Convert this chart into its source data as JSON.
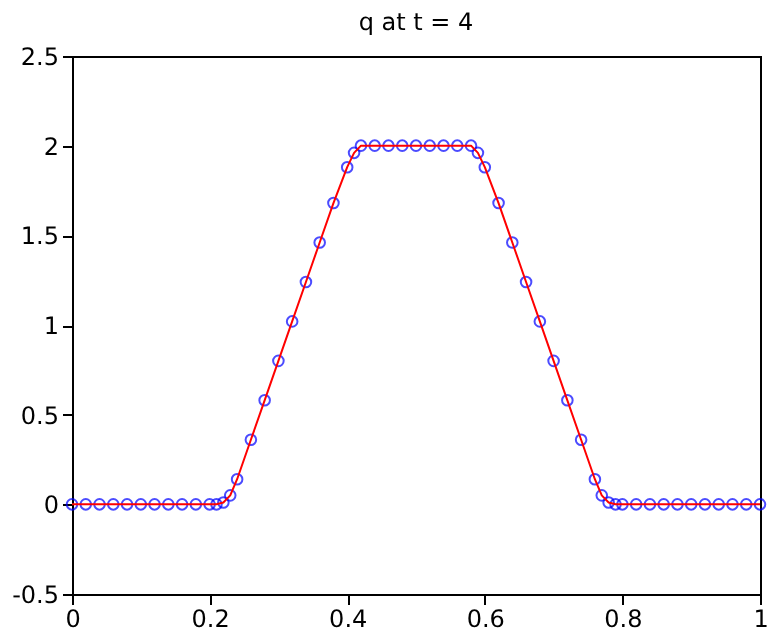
{
  "chart_data": {
    "type": "scatter",
    "title": "q at t = 4",
    "x": [
      0,
      0.02,
      0.04,
      0.06,
      0.08,
      0.1,
      0.12,
      0.14,
      0.16,
      0.18,
      0.2,
      0.21,
      0.22,
      0.23,
      0.24,
      0.26,
      0.28,
      0.3,
      0.32,
      0.34,
      0.36,
      0.38,
      0.4,
      0.41,
      0.42,
      0.44,
      0.46,
      0.48,
      0.5,
      0.52,
      0.54,
      0.56,
      0.58,
      0.59,
      0.6,
      0.62,
      0.64,
      0.66,
      0.68,
      0.7,
      0.72,
      0.74,
      0.76,
      0.77,
      0.78,
      0.79,
      0.8,
      0.82,
      0.84,
      0.86,
      0.88,
      0.9,
      0.92,
      0.94,
      0.96,
      0.98,
      1
    ],
    "series": [
      {
        "color": "#0000ff",
        "marker": "circle",
        "values": [
          0,
          0,
          0,
          0,
          0,
          0,
          0,
          0,
          0,
          0,
          0,
          0,
          0.01,
          0.05,
          0.14,
          0.36,
          0.58,
          0.8,
          1.02,
          1.24,
          1.46,
          1.68,
          1.88,
          1.96,
          2,
          2,
          2,
          2,
          2,
          2,
          2,
          2,
          2,
          1.96,
          1.88,
          1.68,
          1.46,
          1.24,
          1.02,
          0.8,
          0.58,
          0.36,
          0.14,
          0.05,
          0.01,
          0,
          0,
          0,
          0,
          0,
          0,
          0,
          0,
          0,
          0,
          0,
          0
        ]
      },
      {
        "type": "line",
        "color": "#ff0000",
        "line_style": "solid",
        "values": [
          0,
          0,
          0,
          0,
          0,
          0,
          0,
          0,
          0,
          0,
          0,
          0,
          0.01,
          0.05,
          0.14,
          0.36,
          0.58,
          0.8,
          1.02,
          1.24,
          1.46,
          1.68,
          1.88,
          1.96,
          2,
          2,
          2,
          2,
          2,
          2,
          2,
          2,
          2,
          1.96,
          1.88,
          1.68,
          1.46,
          1.24,
          1.02,
          0.8,
          0.58,
          0.36,
          0.14,
          0.05,
          0.01,
          0,
          0,
          0,
          0,
          0,
          0,
          0,
          0,
          0,
          0,
          0,
          0
        ]
      }
    ],
    "xlim": [
      0,
      1
    ],
    "xticks": [
      0,
      0.2,
      0.4,
      0.6,
      0.8,
      1
    ],
    "ylim": [
      -0.5,
      2.5
    ],
    "yticks": [
      -0.5,
      0,
      0.5,
      1,
      1.5,
      2,
      2.5
    ],
    "grid": false
  }
}
